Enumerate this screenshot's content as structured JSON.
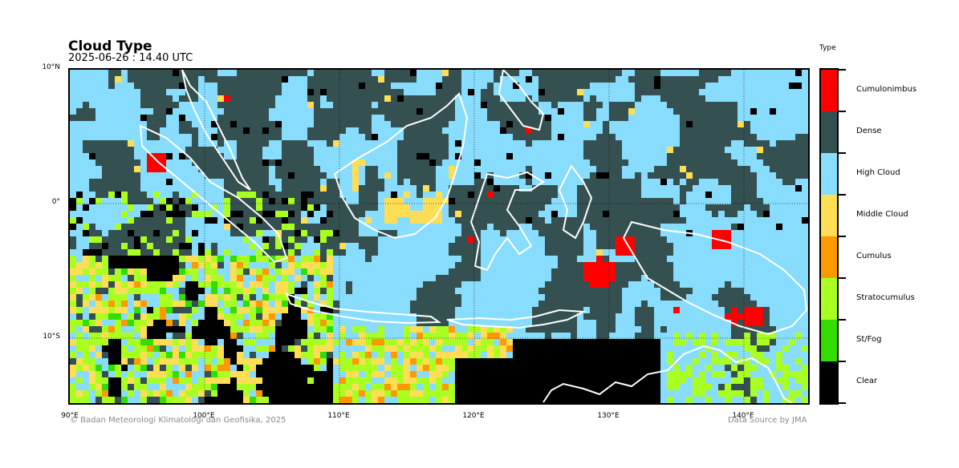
{
  "header": {
    "title": "Cloud Type",
    "subtitle": "2025-06-26 : 14.40 UTC"
  },
  "map": {
    "lat_labels": [
      "10°N",
      "0°",
      "10°S"
    ],
    "lon_labels": [
      "90°E",
      "100°E",
      "110°E",
      "120°E",
      "130°E",
      "140°E"
    ],
    "gridlines": true
  },
  "legend": {
    "title": "Type",
    "classes": [
      {
        "label": "Cumulonimbus",
        "color": "#ff0000"
      },
      {
        "label": "Dense",
        "color": "#355050"
      },
      {
        "label": "High Cloud",
        "color": "#88ddff"
      },
      {
        "label": "Middle Cloud",
        "color": "#ffdd55"
      },
      {
        "label": "Cumulus",
        "color": "#ff9900"
      },
      {
        "label": "Stratocumulus",
        "color": "#aaff22"
      },
      {
        "label": "St/Fog",
        "color": "#33dd00"
      },
      {
        "label": "Clear",
        "color": "#000000"
      }
    ]
  },
  "footer": {
    "copyright": "© Badan Meteorologi Klimatologi dan Geofisika, 2025",
    "source": "Data Source by JMA"
  }
}
